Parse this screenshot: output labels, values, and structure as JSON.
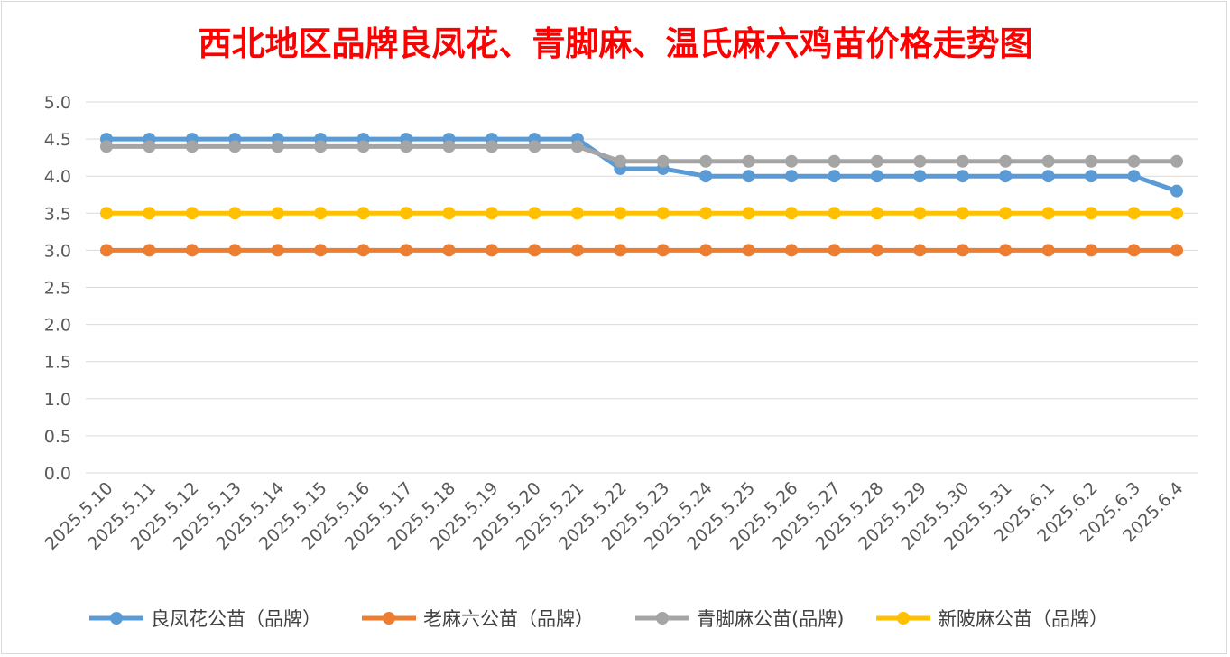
{
  "chart_data": {
    "type": "line",
    "title": "西北地区品牌良凤花、青脚麻、温氏麻六鸡苗价格走势图",
    "xlabel": "",
    "ylabel": "",
    "ylim": [
      0,
      5
    ],
    "y_ticks": [
      "0.0",
      "0.5",
      "1.0",
      "1.5",
      "2.0",
      "2.5",
      "3.0",
      "3.5",
      "4.0",
      "4.5",
      "5.0"
    ],
    "grid": true,
    "legend_position": "bottom",
    "categories": [
      "2025.5.10",
      "2025.5.11",
      "2025.5.12",
      "2025.5.13",
      "2025.5.14",
      "2025.5.15",
      "2025.5.16",
      "2025.5.17",
      "2025.5.18",
      "2025.5.19",
      "2025.5.20",
      "2025.5.21",
      "2025.5.22",
      "2025.5.23",
      "2025.5.24",
      "2025.5.25",
      "2025.5.26",
      "2025.5.27",
      "2025.5.28",
      "2025.5.29",
      "2025.5.30",
      "2025.5.31",
      "2025.6.1",
      "2025.6.2",
      "2025.6.3",
      "2025.6.4"
    ],
    "series": [
      {
        "name": "良凤花公苗（品牌）",
        "color": "#5b9bd5",
        "values": [
          4.5,
          4.5,
          4.5,
          4.5,
          4.5,
          4.5,
          4.5,
          4.5,
          4.5,
          4.5,
          4.5,
          4.5,
          4.1,
          4.1,
          4.0,
          4.0,
          4.0,
          4.0,
          4.0,
          4.0,
          4.0,
          4.0,
          4.0,
          4.0,
          4.0,
          3.8
        ]
      },
      {
        "name": "老麻六公苗（品牌）",
        "color": "#ed7d31",
        "values": [
          3.0,
          3.0,
          3.0,
          3.0,
          3.0,
          3.0,
          3.0,
          3.0,
          3.0,
          3.0,
          3.0,
          3.0,
          3.0,
          3.0,
          3.0,
          3.0,
          3.0,
          3.0,
          3.0,
          3.0,
          3.0,
          3.0,
          3.0,
          3.0,
          3.0,
          3.0
        ]
      },
      {
        "name": "青脚麻公苗(品牌)",
        "color": "#a5a5a5",
        "values": [
          4.4,
          4.4,
          4.4,
          4.4,
          4.4,
          4.4,
          4.4,
          4.4,
          4.4,
          4.4,
          4.4,
          4.4,
          4.2,
          4.2,
          4.2,
          4.2,
          4.2,
          4.2,
          4.2,
          4.2,
          4.2,
          4.2,
          4.2,
          4.2,
          4.2,
          4.2
        ]
      },
      {
        "name": "新陂麻公苗（品牌）",
        "color": "#ffc000",
        "values": [
          3.5,
          3.5,
          3.5,
          3.5,
          3.5,
          3.5,
          3.5,
          3.5,
          3.5,
          3.5,
          3.5,
          3.5,
          3.5,
          3.5,
          3.5,
          3.5,
          3.5,
          3.5,
          3.5,
          3.5,
          3.5,
          3.5,
          3.5,
          3.5,
          3.5,
          3.5
        ]
      }
    ]
  }
}
